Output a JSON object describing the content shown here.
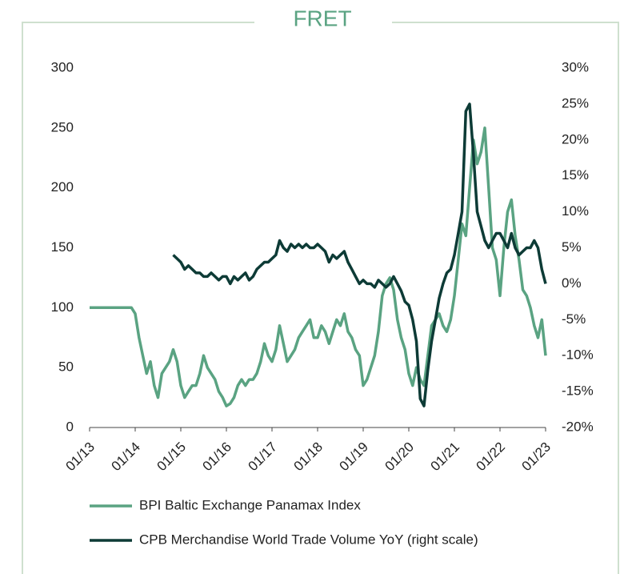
{
  "chart_data": {
    "type": "line",
    "title": "FRET",
    "x": [
      "2013-01",
      "2013-02",
      "2013-03",
      "2013-04",
      "2013-05",
      "2013-06",
      "2013-07",
      "2013-08",
      "2013-09",
      "2013-10",
      "2013-11",
      "2013-12",
      "2014-01",
      "2014-02",
      "2014-03",
      "2014-04",
      "2014-05",
      "2014-06",
      "2014-07",
      "2014-08",
      "2014-09",
      "2014-10",
      "2014-11",
      "2014-12",
      "2015-01",
      "2015-02",
      "2015-03",
      "2015-04",
      "2015-05",
      "2015-06",
      "2015-07",
      "2015-08",
      "2015-09",
      "2015-10",
      "2015-11",
      "2015-12",
      "2016-01",
      "2016-02",
      "2016-03",
      "2016-04",
      "2016-05",
      "2016-06",
      "2016-07",
      "2016-08",
      "2016-09",
      "2016-10",
      "2016-11",
      "2016-12",
      "2017-01",
      "2017-02",
      "2017-03",
      "2017-04",
      "2017-05",
      "2017-06",
      "2017-07",
      "2017-08",
      "2017-09",
      "2017-10",
      "2017-11",
      "2017-12",
      "2018-01",
      "2018-02",
      "2018-03",
      "2018-04",
      "2018-05",
      "2018-06",
      "2018-07",
      "2018-08",
      "2018-09",
      "2018-10",
      "2018-11",
      "2018-12",
      "2019-01",
      "2019-02",
      "2019-03",
      "2019-04",
      "2019-05",
      "2019-06",
      "2019-07",
      "2019-08",
      "2019-09",
      "2019-10",
      "2019-11",
      "2019-12",
      "2020-01",
      "2020-02",
      "2020-03",
      "2020-04",
      "2020-05",
      "2020-06",
      "2020-07",
      "2020-08",
      "2020-09",
      "2020-10",
      "2020-11",
      "2020-12",
      "2021-01",
      "2021-02",
      "2021-03",
      "2021-04",
      "2021-05",
      "2021-06",
      "2021-07",
      "2021-08",
      "2021-09",
      "2021-10",
      "2021-11",
      "2021-12",
      "2022-01",
      "2022-02",
      "2022-03",
      "2022-04",
      "2022-05",
      "2022-06",
      "2022-07",
      "2022-08",
      "2022-09",
      "2022-10",
      "2022-11",
      "2022-12",
      "2023-01"
    ],
    "series": [
      {
        "name": "BPI Baltic Exchange Panamax Index",
        "color": "#5aa382",
        "values": [
          100,
          100,
          100,
          100,
          100,
          100,
          100,
          100,
          100,
          100,
          100,
          100,
          95,
          75,
          60,
          45,
          55,
          35,
          25,
          45,
          50,
          55,
          65,
          55,
          35,
          25,
          30,
          35,
          35,
          45,
          60,
          50,
          45,
          40,
          30,
          25,
          18,
          20,
          25,
          35,
          40,
          35,
          40,
          40,
          45,
          55,
          70,
          60,
          55,
          65,
          85,
          70,
          55,
          60,
          65,
          75,
          80,
          85,
          90,
          75,
          75,
          85,
          80,
          70,
          80,
          90,
          85,
          95,
          80,
          75,
          65,
          60,
          35,
          40,
          50,
          60,
          80,
          110,
          120,
          125,
          115,
          90,
          75,
          65,
          45,
          35,
          50,
          40,
          35,
          60,
          85,
          90,
          95,
          85,
          80,
          90,
          110,
          140,
          170,
          160,
          200,
          240,
          220,
          230,
          250,
          200,
          150,
          140,
          110,
          150,
          180,
          190,
          160,
          140,
          115,
          110,
          100,
          85,
          75,
          90,
          60
        ]
      },
      {
        "name": "CPB Merchandise World Trade Volume YoY (right scale)",
        "color": "#0d3b36",
        "axis": "y2",
        "values": [
          null,
          null,
          null,
          null,
          null,
          null,
          null,
          null,
          null,
          null,
          null,
          null,
          null,
          null,
          null,
          null,
          null,
          null,
          null,
          null,
          null,
          null,
          4,
          3.5,
          3,
          2,
          2.5,
          2,
          1.5,
          1.5,
          1,
          1,
          1.5,
          1,
          0.5,
          1,
          1,
          0,
          1,
          0.5,
          1,
          1.5,
          0.5,
          1,
          2,
          2.5,
          3,
          3,
          3.5,
          4,
          6,
          5,
          4.5,
          5.5,
          5,
          5.5,
          5,
          5.5,
          5,
          5,
          5.5,
          5,
          4.5,
          3,
          4,
          3.5,
          4,
          4.5,
          3,
          2,
          1,
          0,
          0.5,
          0,
          0,
          -0.5,
          0.5,
          0,
          -0.5,
          0,
          1,
          0,
          -1,
          -2.5,
          -3,
          -5,
          -8,
          -16,
          -17,
          -12,
          -8,
          -5,
          -2,
          0,
          1.5,
          2,
          4,
          7,
          10,
          24,
          25,
          18,
          10,
          8,
          6,
          5,
          6,
          7,
          7,
          6,
          5,
          7,
          5,
          4,
          4.5,
          5,
          5,
          6,
          5,
          2,
          0
        ]
      }
    ],
    "xlim": [
      "2013-01",
      "2023-01"
    ],
    "xticks": [
      {
        "value": "2013-01",
        "label": "01/13"
      },
      {
        "value": "2014-01",
        "label": "01/14"
      },
      {
        "value": "2015-01",
        "label": "01/15"
      },
      {
        "value": "2016-01",
        "label": "01/16"
      },
      {
        "value": "2017-01",
        "label": "01/17"
      },
      {
        "value": "2018-01",
        "label": "01/18"
      },
      {
        "value": "2019-01",
        "label": "01/19"
      },
      {
        "value": "2020-01",
        "label": "01/20"
      },
      {
        "value": "2021-01",
        "label": "01/21"
      },
      {
        "value": "2022-01",
        "label": "01/22"
      },
      {
        "value": "2023-01",
        "label": "01/23"
      }
    ],
    "ylim": [
      0,
      300
    ],
    "yticks": [
      0,
      50,
      100,
      150,
      200,
      250,
      300
    ],
    "y2lim": [
      -20,
      30
    ],
    "y2ticks": [
      {
        "value": -20,
        "label": "-20%"
      },
      {
        "value": -15,
        "label": "-15%"
      },
      {
        "value": -10,
        "label": "-10%"
      },
      {
        "value": -5,
        "label": "-5%"
      },
      {
        "value": 0,
        "label": "0%"
      },
      {
        "value": 5,
        "label": "5%"
      },
      {
        "value": 10,
        "label": "10%"
      },
      {
        "value": 15,
        "label": "15%"
      },
      {
        "value": 20,
        "label": "20%"
      },
      {
        "value": 25,
        "label": "25%"
      },
      {
        "value": 30,
        "label": "30%"
      }
    ]
  }
}
